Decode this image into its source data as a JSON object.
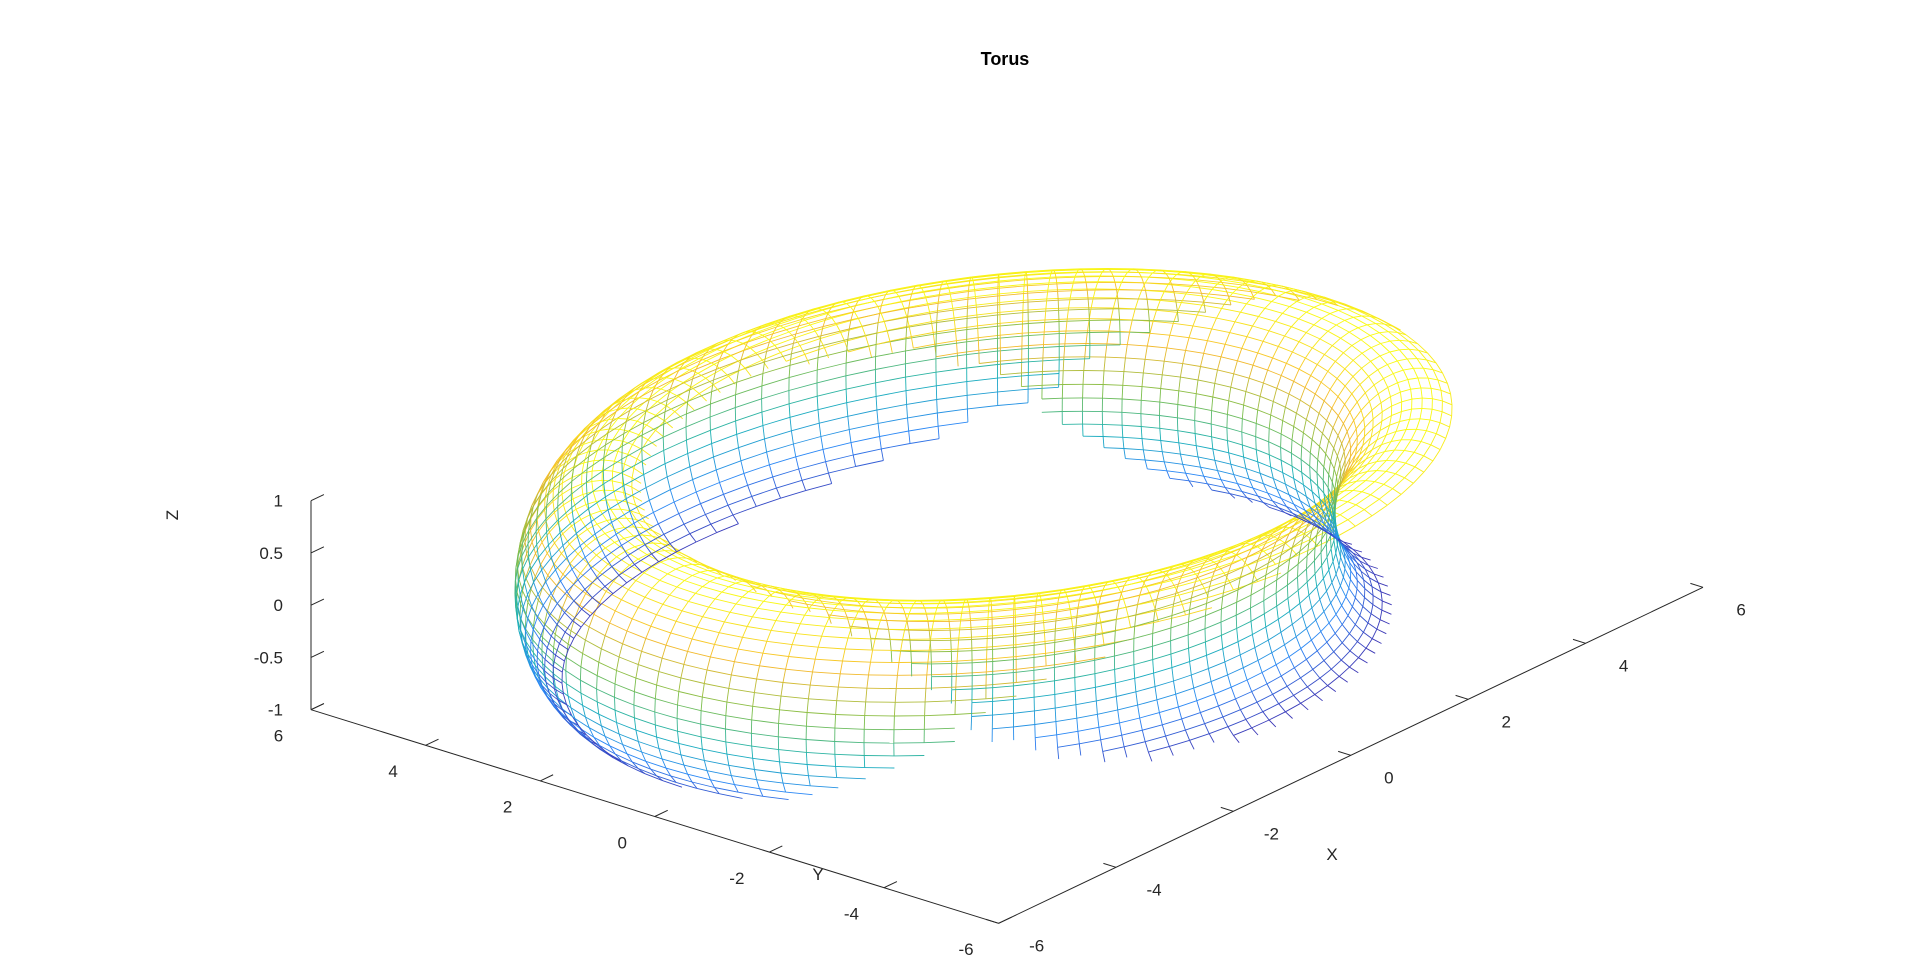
{
  "chart_data": {
    "type": "surface-mesh",
    "title": "Torus",
    "surface": {
      "name": "torus",
      "major_radius": 5,
      "minor_radius": 1,
      "u_segments": 100,
      "v_segments": 50,
      "colormap": [
        "#3e26a8",
        "#2c87f7",
        "#1ab1b8",
        "#7fbf49",
        "#f6ba2c",
        "#f9fb15"
      ]
    },
    "axes": {
      "x": {
        "label": "X",
        "range": [
          -6,
          6
        ],
        "ticks": [
          -6,
          -4,
          -2,
          0,
          2,
          4,
          6
        ],
        "tick_labels": [
          "-6",
          "-4",
          "-2",
          "0",
          "2",
          "4",
          "6"
        ]
      },
      "y": {
        "label": "Y",
        "range": [
          -6,
          6
        ],
        "ticks": [
          -6,
          -4,
          -2,
          0,
          2,
          4,
          6
        ],
        "tick_labels": [
          "-6",
          "-4",
          "-2",
          "0",
          "2",
          "4",
          "6"
        ]
      },
      "z": {
        "label": "Z",
        "range": [
          -1,
          1
        ],
        "ticks": [
          -1,
          -0.5,
          0,
          0.5,
          1
        ],
        "tick_labels": [
          "-1",
          "-0.5",
          "0",
          "0.5",
          "1"
        ]
      }
    },
    "grid": false,
    "legend": false
  }
}
